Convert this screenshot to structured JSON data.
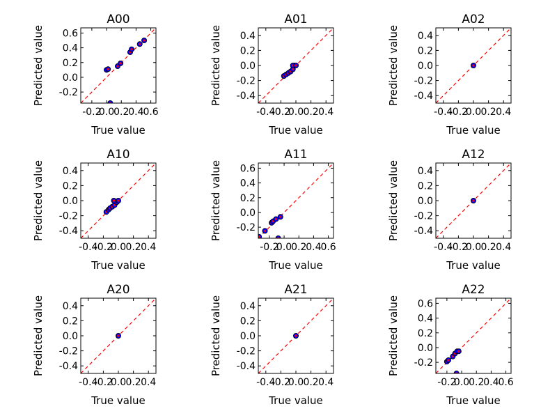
{
  "chart_data": [
    {
      "type": "scatter",
      "title": "A00",
      "xlabel": "True value",
      "ylabel": "Predicted value",
      "xlim": [
        -0.35,
        0.67
      ],
      "ylim": [
        -0.35,
        0.67
      ],
      "xticks": [
        "-0.2",
        "0.0",
        "0.2",
        "0.4",
        "0.6"
      ],
      "xtick_values": [
        -0.2,
        0.0,
        0.2,
        0.4,
        0.6
      ],
      "yticks": [
        "-0.2",
        "0.0",
        "0.2",
        "0.4",
        "0.6"
      ],
      "ytick_values": [
        -0.2,
        0.0,
        0.2,
        0.4,
        0.6
      ],
      "x": [
        0.0,
        0.02,
        0.05,
        0.15,
        0.19,
        0.32,
        0.34,
        0.45,
        0.51
      ],
      "y": [
        0.1,
        0.11,
        -0.35,
        0.15,
        0.19,
        0.34,
        0.38,
        0.45,
        0.5
      ],
      "reference_line": "y = x",
      "grid": false
    },
    {
      "type": "scatter",
      "title": "A01",
      "xlabel": "True value",
      "ylabel": "Predicted value",
      "xlim": [
        -0.5,
        0.5
      ],
      "ylim": [
        -0.5,
        0.5
      ],
      "xticks": [
        "-0.4",
        "-0.2",
        "0.0",
        "0.2",
        "0.4"
      ],
      "xtick_values": [
        -0.4,
        -0.2,
        0.0,
        0.2,
        0.4
      ],
      "yticks": [
        "-0.4",
        "-0.2",
        "0.0",
        "0.2",
        "0.4"
      ],
      "ytick_values": [
        -0.4,
        -0.2,
        0.0,
        0.2,
        0.4
      ],
      "x": [
        -0.16,
        -0.13,
        -0.1,
        -0.07,
        -0.04,
        -0.02,
        -0.04,
        0.0
      ],
      "y": [
        -0.14,
        -0.12,
        -0.1,
        -0.08,
        -0.05,
        0.0,
        0.0,
        0.0
      ],
      "reference_line": "y = x",
      "grid": false
    },
    {
      "type": "scatter",
      "title": "A02",
      "xlabel": "True value",
      "ylabel": "Predicted value",
      "xlim": [
        -0.5,
        0.5
      ],
      "ylim": [
        -0.5,
        0.5
      ],
      "xticks": [
        "-0.4",
        "-0.2",
        "0.0",
        "0.2",
        "0.4"
      ],
      "xtick_values": [
        -0.4,
        -0.2,
        0.0,
        0.2,
        0.4
      ],
      "yticks": [
        "-0.4",
        "-0.2",
        "0.0",
        "0.2",
        "0.4"
      ],
      "ytick_values": [
        -0.4,
        -0.2,
        0.0,
        0.2,
        0.4
      ],
      "x": [
        0.0
      ],
      "y": [
        0.0
      ],
      "reference_line": "y = x",
      "grid": false
    },
    {
      "type": "scatter",
      "title": "A10",
      "xlabel": "True value",
      "ylabel": "Predicted value",
      "xlim": [
        -0.5,
        0.5
      ],
      "ylim": [
        -0.5,
        0.5
      ],
      "xticks": [
        "-0.4",
        "-0.2",
        "0.0",
        "0.2",
        "0.4"
      ],
      "xtick_values": [
        -0.4,
        -0.2,
        0.0,
        0.2,
        0.4
      ],
      "yticks": [
        "-0.4",
        "-0.2",
        "0.0",
        "0.2",
        "0.4"
      ],
      "ytick_values": [
        -0.4,
        -0.2,
        0.0,
        0.2,
        0.4
      ],
      "x": [
        -0.16,
        -0.13,
        -0.11,
        -0.08,
        -0.05,
        -0.02,
        -0.06,
        0.0
      ],
      "y": [
        -0.15,
        -0.12,
        -0.1,
        -0.08,
        -0.06,
        -0.02,
        0.0,
        0.0
      ],
      "reference_line": "y = x",
      "grid": false
    },
    {
      "type": "scatter",
      "title": "A11",
      "xlabel": "True value",
      "ylabel": "Predicted value",
      "xlim": [
        -0.35,
        0.67
      ],
      "ylim": [
        -0.35,
        0.67
      ],
      "xticks": [
        "-0.2",
        "0.0",
        "0.2",
        "0.4",
        "0.6"
      ],
      "xtick_values": [
        -0.2,
        0.0,
        0.2,
        0.4,
        0.6
      ],
      "yticks": [
        "-0.2",
        "0.0",
        "0.2",
        "0.4",
        "0.6"
      ],
      "ytick_values": [
        -0.2,
        0.0,
        0.2,
        0.4,
        0.6
      ],
      "x": [
        -0.34,
        -0.26,
        -0.17,
        -0.15,
        -0.11,
        -0.05,
        -0.08
      ],
      "y": [
        -0.33,
        -0.25,
        -0.14,
        -0.12,
        -0.09,
        -0.06,
        -0.35
      ],
      "reference_line": "y = x",
      "grid": false
    },
    {
      "type": "scatter",
      "title": "A12",
      "xlabel": "True value",
      "ylabel": "Predicted value",
      "xlim": [
        -0.5,
        0.5
      ],
      "ylim": [
        -0.5,
        0.5
      ],
      "xticks": [
        "-0.4",
        "-0.2",
        "0.0",
        "0.2",
        "0.4"
      ],
      "xtick_values": [
        -0.4,
        -0.2,
        0.0,
        0.2,
        0.4
      ],
      "yticks": [
        "-0.4",
        "-0.2",
        "0.0",
        "0.2",
        "0.4"
      ],
      "ytick_values": [
        -0.4,
        -0.2,
        0.0,
        0.2,
        0.4
      ],
      "x": [
        0.0
      ],
      "y": [
        0.0
      ],
      "reference_line": "y = x",
      "grid": false
    },
    {
      "type": "scatter",
      "title": "A20",
      "xlabel": "True value",
      "ylabel": "Predicted value",
      "xlim": [
        -0.5,
        0.5
      ],
      "ylim": [
        -0.5,
        0.5
      ],
      "xticks": [
        "-0.4",
        "-0.2",
        "0.0",
        "0.2",
        "0.4"
      ],
      "xtick_values": [
        -0.4,
        -0.2,
        0.0,
        0.2,
        0.4
      ],
      "yticks": [
        "-0.4",
        "-0.2",
        "0.0",
        "0.2",
        "0.4"
      ],
      "ytick_values": [
        -0.4,
        -0.2,
        0.0,
        0.2,
        0.4
      ],
      "x": [
        0.0
      ],
      "y": [
        0.0
      ],
      "reference_line": "y = x",
      "grid": false
    },
    {
      "type": "scatter",
      "title": "A21",
      "xlabel": "True value",
      "ylabel": "Predicted value",
      "xlim": [
        -0.5,
        0.5
      ],
      "ylim": [
        -0.5,
        0.5
      ],
      "xticks": [
        "-0.4",
        "-0.2",
        "0.0",
        "0.2",
        "0.4"
      ],
      "xtick_values": [
        -0.4,
        -0.2,
        0.0,
        0.2,
        0.4
      ],
      "yticks": [
        "-0.4",
        "-0.2",
        "0.0",
        "0.2",
        "0.4"
      ],
      "ytick_values": [
        -0.4,
        -0.2,
        0.0,
        0.2,
        0.4
      ],
      "x": [
        0.0
      ],
      "y": [
        0.0
      ],
      "reference_line": "y = x",
      "grid": false
    },
    {
      "type": "scatter",
      "title": "A22",
      "xlabel": "True value",
      "ylabel": "Predicted value",
      "xlim": [
        -0.35,
        0.67
      ],
      "ylim": [
        -0.35,
        0.67
      ],
      "xticks": [
        "-0.2",
        "0.0",
        "0.2",
        "0.4",
        "0.6"
      ],
      "xtick_values": [
        -0.2,
        0.0,
        0.2,
        0.4,
        0.6
      ],
      "yticks": [
        "-0.2",
        "0.0",
        "0.2",
        "0.4",
        "0.6"
      ],
      "ytick_values": [
        -0.2,
        0.0,
        0.2,
        0.4,
        0.6
      ],
      "x": [
        -0.2,
        -0.18,
        -0.12,
        -0.09,
        -0.06,
        -0.04,
        -0.07
      ],
      "y": [
        -0.19,
        -0.17,
        -0.12,
        -0.08,
        -0.05,
        -0.05,
        -0.35
      ],
      "reference_line": "y = x",
      "grid": false
    }
  ],
  "colors": {
    "point_fill": "#0000ff",
    "point_edge": "#000000",
    "point_center": "#ff0000",
    "reference_line": "#ff0000"
  }
}
